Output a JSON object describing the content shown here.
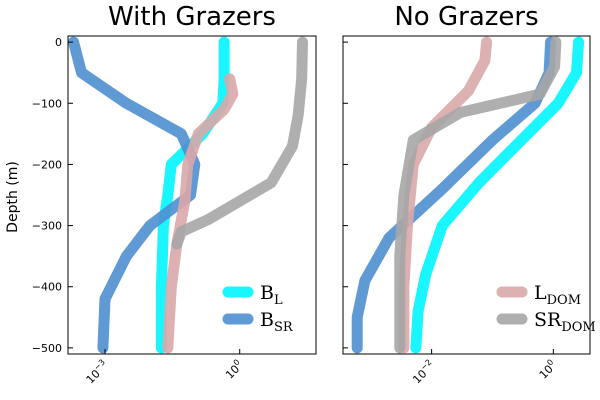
{
  "chart_data": [
    {
      "type": "line",
      "title": "With Grazers",
      "xlabel": "",
      "ylabel": "Depth (m)",
      "xscale": "log",
      "xlim": [
        0.00015,
        50
      ],
      "ylim": [
        -510,
        10
      ],
      "yticks": [
        0,
        -100,
        -200,
        -300,
        -400,
        -500
      ],
      "xticks": [
        {
          "value": 0.001,
          "base": "10",
          "exp": "-3"
        },
        {
          "value": 1,
          "base": "10",
          "exp": "0"
        }
      ],
      "legend_position": "bottom-right",
      "grid": false,
      "series": [
        {
          "name": "L",
          "legend_base": "B",
          "legend_sub": "L",
          "color": "#00F5FF",
          "in_legend": true,
          "points": [
            [
              0.45,
              0
            ],
            [
              0.45,
              -60
            ],
            [
              0.42,
              -100
            ],
            [
              0.15,
              -150
            ],
            [
              0.03,
              -200
            ],
            [
              0.025,
              -250
            ],
            [
              0.02,
              -300
            ],
            [
              0.018,
              -400
            ],
            [
              0.018,
              -500
            ]
          ]
        },
        {
          "name": "SR",
          "legend_base": "B",
          "legend_sub": "SR",
          "color": "#4E8FD0",
          "in_legend": true,
          "points": [
            [
              0.0002,
              0
            ],
            [
              0.0003,
              -50
            ],
            [
              0.003,
              -100
            ],
            [
              0.05,
              -150
            ],
            [
              0.1,
              -200
            ],
            [
              0.08,
              -250
            ],
            [
              0.01,
              -300
            ],
            [
              0.003,
              -350
            ],
            [
              0.001,
              -420
            ],
            [
              0.0009,
              -500
            ]
          ]
        },
        {
          "name": "L_DOM",
          "color": "#D9A9A9",
          "in_legend": false,
          "points": [
            [
              0.6,
              -60
            ],
            [
              0.7,
              -85
            ],
            [
              0.45,
              -110
            ],
            [
              0.12,
              -150
            ],
            [
              0.07,
              -200
            ],
            [
              0.06,
              -260
            ],
            [
              0.04,
              -330
            ],
            [
              0.03,
              -400
            ],
            [
              0.025,
              -500
            ]
          ]
        },
        {
          "name": "SR_DOM",
          "color": "#A6A6A6",
          "in_legend": false,
          "points": [
            [
              25,
              0
            ],
            [
              24,
              -60
            ],
            [
              20,
              -120
            ],
            [
              15,
              -170
            ],
            [
              5,
              -230
            ],
            [
              1,
              -260
            ],
            [
              0.2,
              -290
            ],
            [
              0.05,
              -310
            ],
            [
              0.04,
              -330
            ]
          ]
        }
      ]
    },
    {
      "type": "line",
      "title": "No Grazers",
      "xlabel": "",
      "ylabel": "",
      "xscale": "log",
      "xlim": [
        0.00035,
        4
      ],
      "ylim": [
        -510,
        10
      ],
      "yticks": [
        0,
        -100,
        -200,
        -300,
        -400,
        -500
      ],
      "xticks": [
        {
          "value": 0.01,
          "base": "10",
          "exp": "-2"
        },
        {
          "value": 1,
          "base": "10",
          "exp": "0"
        }
      ],
      "legend_position": "bottom-right",
      "grid": false,
      "series": [
        {
          "name": "B_L",
          "color": "#00F5FF",
          "in_legend": false,
          "points": [
            [
              2.6,
              0
            ],
            [
              2.4,
              -50
            ],
            [
              1.2,
              -100
            ],
            [
              0.3,
              -160
            ],
            [
              0.06,
              -230
            ],
            [
              0.015,
              -300
            ],
            [
              0.008,
              -380
            ],
            [
              0.006,
              -440
            ],
            [
              0.0055,
              -500
            ]
          ]
        },
        {
          "name": "B_SR",
          "color": "#4E8FD0",
          "in_legend": false,
          "points": [
            [
              0.9,
              0
            ],
            [
              0.85,
              -50
            ],
            [
              0.5,
              -100
            ],
            [
              0.1,
              -160
            ],
            [
              0.015,
              -240
            ],
            [
              0.002,
              -320
            ],
            [
              0.0008,
              -390
            ],
            [
              0.0006,
              -450
            ],
            [
              0.0006,
              -500
            ]
          ]
        },
        {
          "name": "DOM",
          "legend_base": "L",
          "legend_sub": "DOM",
          "color": "#D9A9A9",
          "in_legend": true,
          "points": [
            [
              0.08,
              0
            ],
            [
              0.075,
              -30
            ],
            [
              0.04,
              -80
            ],
            [
              0.01,
              -140
            ],
            [
              0.005,
              -200
            ],
            [
              0.004,
              -300
            ],
            [
              0.0035,
              -400
            ],
            [
              0.0035,
              -500
            ]
          ]
        },
        {
          "name": "DOM",
          "legend_base": "SR",
          "legend_sub": "DOM",
          "color": "#A6A6A6",
          "in_legend": true,
          "points": [
            [
              1.1,
              0
            ],
            [
              1.05,
              -40
            ],
            [
              0.6,
              -85
            ],
            [
              0.03,
              -115
            ],
            [
              0.005,
              -160
            ],
            [
              0.0035,
              -250
            ],
            [
              0.003,
              -350
            ],
            [
              0.003,
              -450
            ],
            [
              0.003,
              -500
            ]
          ]
        }
      ]
    }
  ]
}
